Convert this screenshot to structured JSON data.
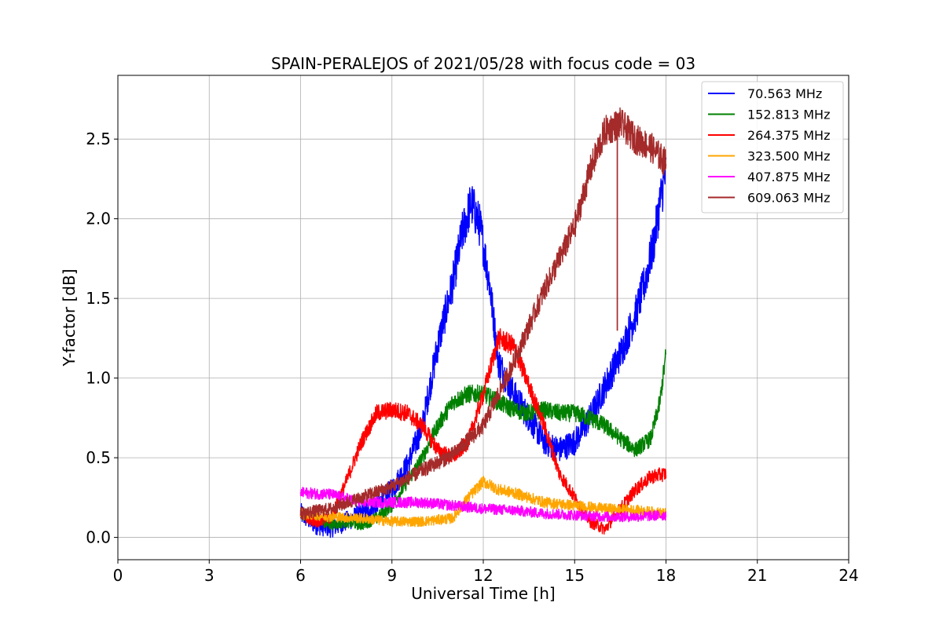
{
  "chart_data": {
    "type": "line",
    "title": "SPAIN-PERALEJOS of 2021/05/28 with focus code = 03",
    "xlabel": "Universal Time [h]",
    "ylabel": "Y-factor [dB]",
    "xlim": [
      0,
      24
    ],
    "ylim": [
      -0.14,
      2.9
    ],
    "xticks": [
      0,
      3,
      6,
      9,
      12,
      15,
      18,
      21,
      24
    ],
    "xtick_labels": [
      "0",
      "3",
      "6",
      "9",
      "12",
      "15",
      "18",
      "21",
      "24"
    ],
    "yticks": [
      0.0,
      0.5,
      1.0,
      1.5,
      2.0,
      2.5
    ],
    "ytick_labels": [
      "0.0",
      "0.5",
      "1.0",
      "1.5",
      "2.0",
      "2.5"
    ],
    "grid": true,
    "legend_position": "top-right",
    "series": [
      {
        "name": " 70.563 MHz",
        "color": "#0000ff",
        "x": [
          6.0,
          6.5,
          7.0,
          7.5,
          8.0,
          8.5,
          9.0,
          9.5,
          10.0,
          10.5,
          11.0,
          11.3,
          11.6,
          11.9,
          12.2,
          12.5,
          13.0,
          13.5,
          14.0,
          14.5,
          15.0,
          15.5,
          16.0,
          16.5,
          17.0,
          17.3,
          17.6,
          17.8,
          18.0
        ],
        "y": [
          0.15,
          0.08,
          0.06,
          0.1,
          0.15,
          0.2,
          0.3,
          0.45,
          0.7,
          1.2,
          1.6,
          1.9,
          2.1,
          1.95,
          1.6,
          1.1,
          0.9,
          0.75,
          0.6,
          0.55,
          0.6,
          0.75,
          0.95,
          1.15,
          1.4,
          1.6,
          1.85,
          2.1,
          2.3
        ],
        "noise": 0.1
      },
      {
        "name": "152.813 MHz",
        "color": "#008000",
        "x": [
          6.0,
          6.5,
          7.0,
          7.5,
          8.0,
          8.5,
          9.0,
          9.5,
          10.0,
          10.5,
          11.0,
          11.5,
          12.0,
          12.5,
          13.0,
          13.5,
          14.0,
          14.5,
          15.0,
          15.5,
          16.0,
          16.5,
          17.0,
          17.5,
          17.8,
          18.0
        ],
        "y": [
          0.15,
          0.12,
          0.08,
          0.1,
          0.08,
          0.12,
          0.2,
          0.35,
          0.5,
          0.7,
          0.85,
          0.9,
          0.9,
          0.85,
          0.8,
          0.78,
          0.8,
          0.78,
          0.78,
          0.75,
          0.7,
          0.62,
          0.55,
          0.62,
          0.85,
          1.15
        ],
        "noise": 0.06
      },
      {
        "name": "264.375 MHz",
        "color": "#ff0000",
        "x": [
          6.0,
          6.5,
          7.0,
          7.5,
          8.0,
          8.5,
          9.0,
          9.5,
          10.0,
          10.5,
          11.0,
          11.5,
          12.0,
          12.5,
          13.0,
          13.5,
          14.0,
          14.5,
          15.0,
          15.5,
          16.0,
          16.5,
          17.0,
          17.5,
          18.0
        ],
        "y": [
          0.15,
          0.1,
          0.12,
          0.35,
          0.6,
          0.78,
          0.8,
          0.78,
          0.7,
          0.55,
          0.5,
          0.6,
          0.9,
          1.25,
          1.2,
          0.95,
          0.7,
          0.4,
          0.25,
          0.1,
          0.05,
          0.18,
          0.3,
          0.38,
          0.4
        ],
        "noise": 0.06
      },
      {
        "name": "323.500 MHz",
        "color": "#ffa500",
        "x": [
          6.0,
          7.0,
          8.0,
          9.0,
          10.0,
          11.0,
          11.5,
          12.0,
          12.5,
          13.0,
          13.5,
          14.0,
          15.0,
          16.0,
          17.0,
          18.0
        ],
        "y": [
          0.15,
          0.13,
          0.12,
          0.1,
          0.1,
          0.12,
          0.25,
          0.35,
          0.3,
          0.28,
          0.25,
          0.22,
          0.2,
          0.18,
          0.17,
          0.15
        ],
        "noise": 0.05
      },
      {
        "name": "407.875 MHz",
        "color": "#ff00ff",
        "x": [
          6.0,
          7.0,
          8.0,
          9.0,
          10.0,
          11.0,
          12.0,
          13.0,
          14.0,
          15.0,
          16.0,
          17.0,
          18.0
        ],
        "y": [
          0.28,
          0.27,
          0.22,
          0.22,
          0.22,
          0.2,
          0.18,
          0.17,
          0.15,
          0.14,
          0.13,
          0.13,
          0.14
        ],
        "noise": 0.05
      },
      {
        "name": "609.063 MHz",
        "color": "#a52a2a",
        "x": [
          6.0,
          7.0,
          8.0,
          9.0,
          10.0,
          11.0,
          12.0,
          13.0,
          14.0,
          15.0,
          15.5,
          16.0,
          16.5,
          17.0,
          17.5,
          18.0
        ],
        "y": [
          0.15,
          0.18,
          0.25,
          0.32,
          0.42,
          0.52,
          0.7,
          1.1,
          1.55,
          1.95,
          2.3,
          2.55,
          2.6,
          2.5,
          2.45,
          2.35
        ],
        "noise": 0.06,
        "spike": {
          "x": 16.4,
          "y_low": 1.3
        }
      }
    ]
  }
}
